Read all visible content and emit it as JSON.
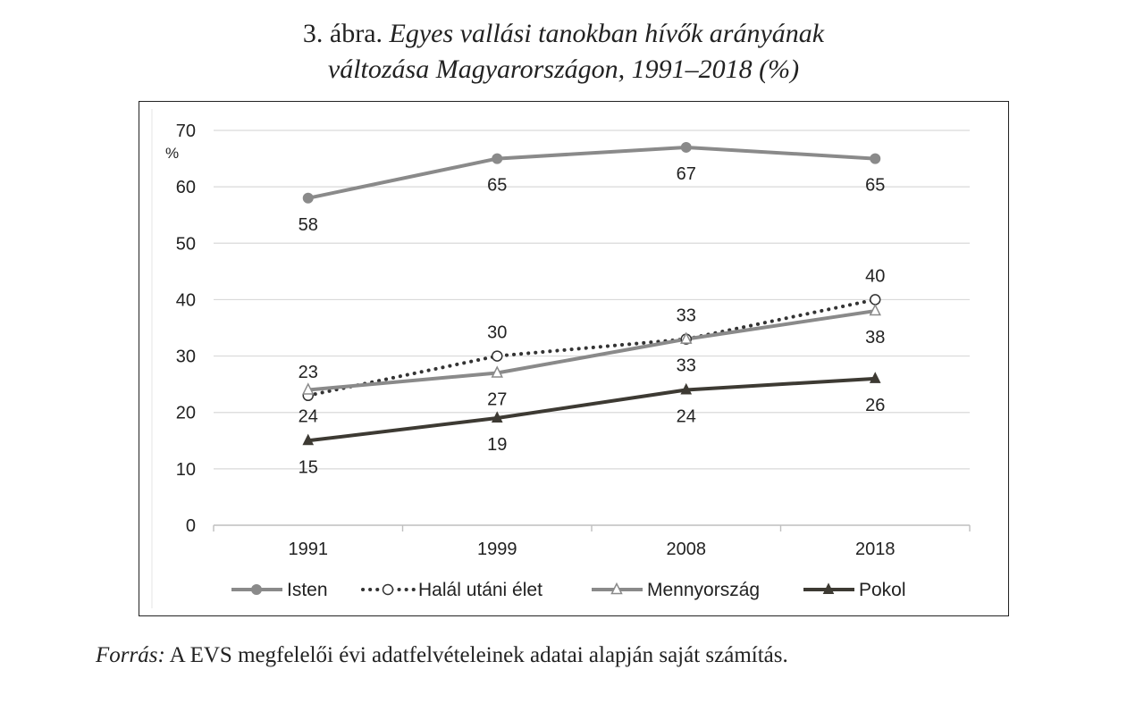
{
  "figure": {
    "title_prefix": "3. ábra.",
    "title_line1_italic": "Egyes vallási tanokban hívők arányának",
    "title_line2_italic": "változása Magyarországon, 1991–2018 (%)",
    "source_label": "Forrás:",
    "source_text": "A EVS megfelelői évi adatfelvételeinek adatai alapján saját számítás."
  },
  "chart_data": {
    "type": "line",
    "categories": [
      "1991",
      "1999",
      "2008",
      "2018"
    ],
    "ylabel": "%",
    "ylim": [
      0,
      70
    ],
    "yticks": [
      0,
      10,
      20,
      30,
      40,
      50,
      60,
      70
    ],
    "grid": true,
    "legend_position": "bottom",
    "series": [
      {
        "name": "Isten",
        "values": [
          58,
          65,
          67,
          65
        ],
        "color": "#8a8a8a",
        "style": "solid",
        "marker": "circle-filled",
        "labels": [
          "58",
          "65",
          "67",
          "65"
        ],
        "label_pos": [
          "below",
          "below",
          "below",
          "below"
        ]
      },
      {
        "name": "Halál utáni élet",
        "values": [
          23,
          30,
          33,
          40
        ],
        "color": "#333333",
        "style": "dotted",
        "marker": "circle-open",
        "labels": [
          "23",
          "30",
          "33",
          "40"
        ],
        "label_pos": [
          "above",
          "above",
          "above",
          "above"
        ]
      },
      {
        "name": "Mennyország",
        "values": [
          24,
          27,
          33,
          38
        ],
        "color": "#8a8a8a",
        "style": "solid",
        "marker": "triangle-open",
        "labels": [
          "24",
          "27",
          "33",
          "38"
        ],
        "label_pos": [
          "below",
          "below",
          "below",
          "below"
        ]
      },
      {
        "name": "Pokol",
        "values": [
          15,
          19,
          24,
          26
        ],
        "color": "#3d3a33",
        "style": "solid",
        "marker": "triangle-filled",
        "labels": [
          "15",
          "19",
          "24",
          "26"
        ],
        "label_pos": [
          "below",
          "below",
          "below",
          "below"
        ]
      }
    ]
  }
}
